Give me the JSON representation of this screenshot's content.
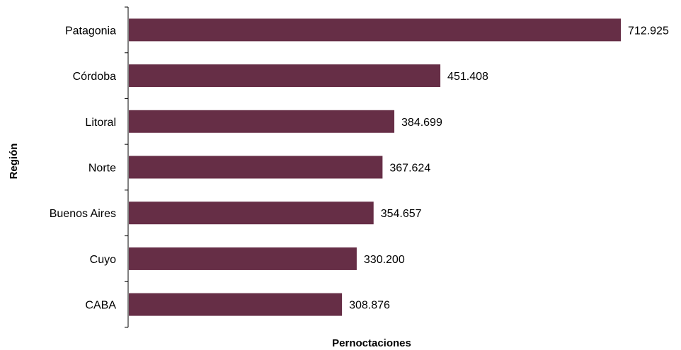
{
  "chart_data": {
    "type": "bar",
    "orientation": "horizontal",
    "categories": [
      "Patagonia",
      "Córdoba",
      "Litoral",
      "Norte",
      "Buenos Aires",
      "Cuyo",
      "CABA"
    ],
    "values": [
      712925,
      451408,
      384699,
      367624,
      354657,
      330200,
      308876
    ],
    "value_labels": [
      "712.925",
      "451.408",
      "384.699",
      "367.624",
      "354.657",
      "330.200",
      "308.876"
    ],
    "title": "",
    "xlabel": "Pernoctaciones",
    "ylabel": "Región",
    "xlim": [
      0,
      712925
    ],
    "bar_color": "#662e46",
    "grid": false,
    "legend": "none"
  }
}
